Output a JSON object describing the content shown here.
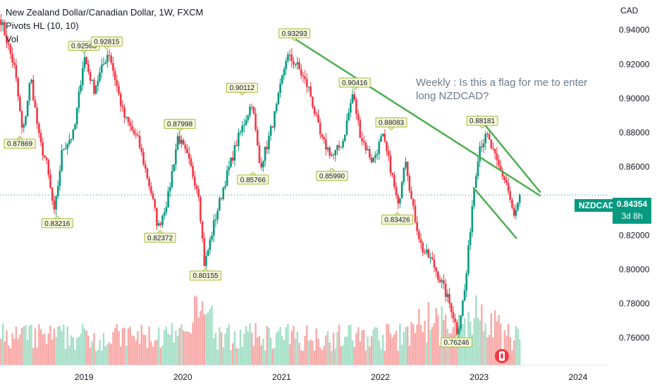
{
  "header": {
    "title": "New Zealand Dollar/Canadian Dollar, 1W, FXCM",
    "indicator_pivots": "Pivots HL (10, 10)",
    "indicator_vol": "Vol",
    "currency": "CAD"
  },
  "annotation": "Weekly : Is this a flag for me to enter long NZDCAD?",
  "price_tag": {
    "symbol": "NZDCAD",
    "price": "0.84354",
    "countdown": "3d 8h"
  },
  "colors": {
    "up": "#089981",
    "down": "#f23645",
    "vol_up": "#a5dfc7",
    "vol_down": "#f7a9a7",
    "trendline": "#4caf50",
    "pivot_bg": "#f4f7d9",
    "pivot_border": "#a9b93a"
  },
  "chart_data": {
    "type": "candlestick",
    "y_range": [
      0.744,
      0.951
    ],
    "y_ticks": [
      "0.94000",
      "0.92000",
      "0.90000",
      "0.88000",
      "0.86000",
      "0.84000",
      "0.82000",
      "0.80000",
      "0.78000",
      "0.76000"
    ],
    "x_ticks": [
      "2019",
      "2020",
      "2021",
      "2022",
      "2023",
      "2024"
    ],
    "x_tick_values": [
      2019.0,
      2020.0,
      2021.0,
      2022.0,
      2023.0,
      2024.0
    ],
    "x_range": [
      2018.15,
      2024.3
    ],
    "last_price": 0.84354,
    "price_path": [
      [
        2018.16,
        0.946
      ],
      [
        2018.3,
        0.917
      ],
      [
        2018.38,
        0.878
      ],
      [
        2018.46,
        0.913
      ],
      [
        2018.55,
        0.875
      ],
      [
        2018.62,
        0.862
      ],
      [
        2018.7,
        0.832
      ],
      [
        2018.78,
        0.87
      ],
      [
        2018.9,
        0.88
      ],
      [
        2019.0,
        0.925
      ],
      [
        2019.1,
        0.905
      ],
      [
        2019.25,
        0.928
      ],
      [
        2019.4,
        0.89
      ],
      [
        2019.55,
        0.875
      ],
      [
        2019.68,
        0.845
      ],
      [
        2019.75,
        0.824
      ],
      [
        2019.85,
        0.842
      ],
      [
        2019.95,
        0.878
      ],
      [
        2020.05,
        0.865
      ],
      [
        2020.16,
        0.845
      ],
      [
        2020.22,
        0.802
      ],
      [
        2020.32,
        0.828
      ],
      [
        2020.42,
        0.85
      ],
      [
        2020.55,
        0.875
      ],
      [
        2020.7,
        0.898
      ],
      [
        2020.78,
        0.86
      ],
      [
        2020.85,
        0.872
      ],
      [
        2020.95,
        0.895
      ],
      [
        2021.05,
        0.925
      ],
      [
        2021.15,
        0.92
      ],
      [
        2021.28,
        0.905
      ],
      [
        2021.4,
        0.876
      ],
      [
        2021.52,
        0.866
      ],
      [
        2021.62,
        0.875
      ],
      [
        2021.72,
        0.903
      ],
      [
        2021.8,
        0.878
      ],
      [
        2021.92,
        0.863
      ],
      [
        2022.02,
        0.878
      ],
      [
        2022.1,
        0.86
      ],
      [
        2022.18,
        0.836
      ],
      [
        2022.25,
        0.868
      ],
      [
        2022.32,
        0.838
      ],
      [
        2022.42,
        0.812
      ],
      [
        2022.52,
        0.805
      ],
      [
        2022.62,
        0.792
      ],
      [
        2022.72,
        0.777
      ],
      [
        2022.78,
        0.763
      ],
      [
        2022.86,
        0.79
      ],
      [
        2022.94,
        0.845
      ],
      [
        2023.0,
        0.872
      ],
      [
        2023.08,
        0.878
      ],
      [
        2023.18,
        0.862
      ],
      [
        2023.28,
        0.85
      ],
      [
        2023.35,
        0.83
      ],
      [
        2023.42,
        0.843
      ]
    ],
    "pivots": [
      {
        "x": 2018.35,
        "y": 0.87869,
        "label": "0.87869",
        "type": "low"
      },
      {
        "x": 2018.73,
        "y": 0.83216,
        "label": "0.83216",
        "type": "low"
      },
      {
        "x": 2019.0,
        "y": 0.92565,
        "label": "0.92565",
        "type": "high"
      },
      {
        "x": 2019.23,
        "y": 0.92815,
        "label": "0.92815",
        "type": "high"
      },
      {
        "x": 2019.77,
        "y": 0.82372,
        "label": "0.82372",
        "type": "low"
      },
      {
        "x": 2019.97,
        "y": 0.87998,
        "label": "0.87998",
        "type": "high"
      },
      {
        "x": 2020.23,
        "y": 0.80155,
        "label": "0.80155",
        "type": "low"
      },
      {
        "x": 2020.6,
        "y": 0.90112,
        "label": "0.90112",
        "type": "high"
      },
      {
        "x": 2020.71,
        "y": 0.85766,
        "label": "0.85766",
        "type": "low"
      },
      {
        "x": 2021.13,
        "y": 0.93293,
        "label": "0.93293",
        "type": "high"
      },
      {
        "x": 2021.51,
        "y": 0.8599,
        "label": "0.85990",
        "type": "low"
      },
      {
        "x": 2021.74,
        "y": 0.90416,
        "label": "0.90416",
        "type": "high"
      },
      {
        "x": 2022.11,
        "y": 0.88083,
        "label": "0.88083",
        "type": "high"
      },
      {
        "x": 2022.17,
        "y": 0.83426,
        "label": "0.83426",
        "type": "low"
      },
      {
        "x": 2022.77,
        "y": 0.76246,
        "label": "0.76246",
        "type": "low"
      },
      {
        "x": 2023.03,
        "y": 0.88181,
        "label": "0.88181",
        "type": "high"
      }
    ],
    "trendlines": [
      {
        "x1": 2021.13,
        "y1": 0.935,
        "x2": 2023.62,
        "y2": 0.843
      },
      {
        "x1": 2022.98,
        "y1": 0.89,
        "x2": 2023.62,
        "y2": 0.845
      },
      {
        "x1": 2022.94,
        "y1": 0.848,
        "x2": 2023.38,
        "y2": 0.818
      }
    ],
    "volume_range": [
      0,
      1
    ],
    "grid": false,
    "legend": "top-left"
  }
}
